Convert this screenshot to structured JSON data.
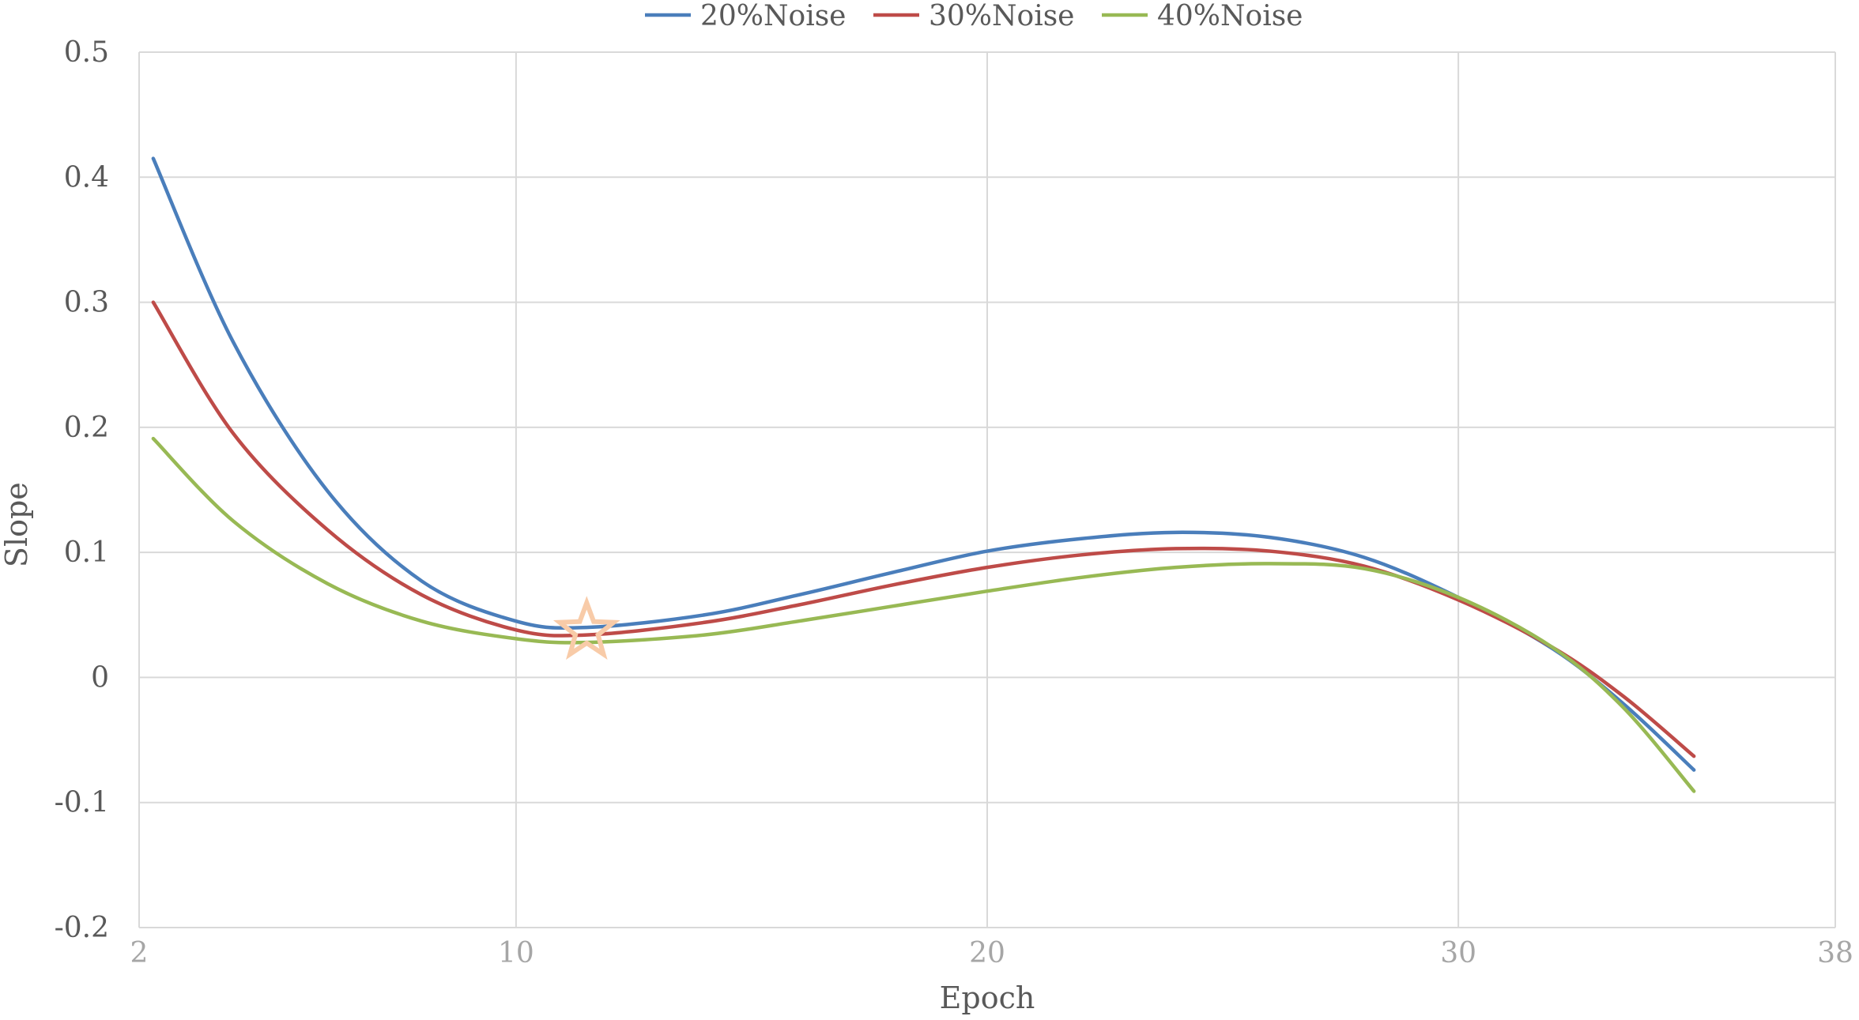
{
  "chart_data": {
    "type": "line",
    "xlabel": "Epoch",
    "ylabel": "Slope",
    "xlim": [
      2,
      38
    ],
    "ylim": [
      -0.2,
      0.5
    ],
    "x_ticks": [
      2,
      10,
      20,
      30,
      38
    ],
    "x_tick_labels": [
      "2",
      "10",
      "20",
      "30",
      "38"
    ],
    "y_ticks": [
      -0.2,
      -0.1,
      0,
      0.1,
      0.2,
      0.3,
      0.4,
      0.5
    ],
    "y_tick_labels": [
      "-0.2",
      "-0.1",
      "0",
      "0.1",
      "0.2",
      "0.3",
      "0.4",
      "0.5"
    ],
    "grid": true,
    "legend_position": "top-center",
    "x": [
      2.3,
      4,
      6,
      8,
      10,
      11.5,
      14,
      16,
      18,
      20,
      22,
      24,
      26,
      28,
      30,
      32,
      33.5,
      35
    ],
    "series": [
      {
        "name": "20%Noise",
        "color": "#4a7ebb",
        "values": [
          0.415,
          0.268,
          0.149,
          0.077,
          0.045,
          0.04,
          0.05,
          0.066,
          0.084,
          0.101,
          0.111,
          0.116,
          0.112,
          0.096,
          0.064,
          0.023,
          -0.021,
          -0.074
        ]
      },
      {
        "name": "30%Noise",
        "color": "#be4b48",
        "values": [
          0.3,
          0.195,
          0.118,
          0.066,
          0.038,
          0.034,
          0.044,
          0.058,
          0.074,
          0.088,
          0.098,
          0.103,
          0.101,
          0.089,
          0.062,
          0.024,
          -0.015,
          -0.063
        ]
      },
      {
        "name": "40%Noise",
        "color": "#98b954",
        "values": [
          0.191,
          0.125,
          0.075,
          0.045,
          0.031,
          0.028,
          0.034,
          0.045,
          0.057,
          0.069,
          0.08,
          0.088,
          0.091,
          0.087,
          0.064,
          0.024,
          -0.024,
          -0.091
        ]
      }
    ],
    "annotations": [
      {
        "type": "star",
        "x": 11.5,
        "y": 0.037,
        "color": "#f8cba8"
      }
    ]
  }
}
